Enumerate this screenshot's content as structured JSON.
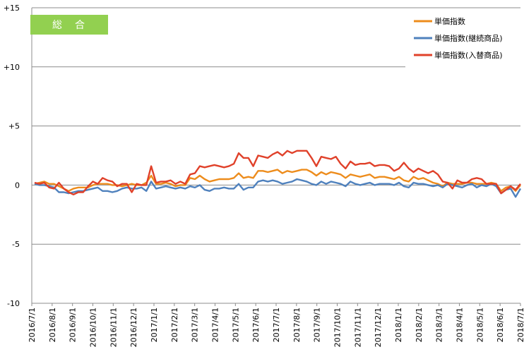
{
  "chart_data": {
    "type": "line",
    "badge": "総　合",
    "title": "",
    "xlabel": "",
    "ylabel": "",
    "ylim": [
      -10,
      15
    ],
    "yticks": [
      15,
      10,
      5,
      0,
      -5,
      -10
    ],
    "ytick_labels": [
      "+15",
      "+10",
      "+5",
      "0",
      "-5",
      "-10"
    ],
    "grid": "horizontal",
    "legend": "top-right",
    "x_labels": [
      "2016/7/1",
      "2016/8/1",
      "2016/9/1",
      "2016/10/1",
      "2016/11/1",
      "2016/12/1",
      "2017/1/1",
      "2017/2/1",
      "2017/3/1",
      "2017/4/1",
      "2017/5/1",
      "2017/6/1",
      "2017/7/1",
      "2017/8/1",
      "2017/9/1",
      "2017/10/1",
      "2017/11/1",
      "2017/12/1",
      "2018/1/1",
      "2018/2/1",
      "2018/3/1",
      "2018/4/1",
      "2018/5/1",
      "2018/6/1",
      "2018/7/1"
    ],
    "series": [
      {
        "name": "単価指数",
        "color": "#ed8c1c",
        "values": [
          0.1,
          0.2,
          0.3,
          0.1,
          0.1,
          -0.1,
          -0.3,
          -0.5,
          -0.3,
          -0.2,
          -0.2,
          -0.2,
          0.0,
          0.1,
          0.1,
          0.1,
          0.0,
          0.0,
          -0.1,
          0.0,
          0.1,
          0.0,
          0.0,
          0.2,
          0.8,
          0.1,
          0.1,
          0.2,
          0.1,
          -0.1,
          0.0,
          0.0,
          0.6,
          0.5,
          0.8,
          0.5,
          0.3,
          0.4,
          0.5,
          0.5,
          0.5,
          0.6,
          1.0,
          0.6,
          0.7,
          0.6,
          1.2,
          1.2,
          1.1,
          1.2,
          1.3,
          1.0,
          1.2,
          1.1,
          1.2,
          1.3,
          1.3,
          1.1,
          0.8,
          1.1,
          0.9,
          1.1,
          1.0,
          0.9,
          0.6,
          0.9,
          0.8,
          0.7,
          0.8,
          0.9,
          0.6,
          0.7,
          0.7,
          0.6,
          0.5,
          0.7,
          0.4,
          0.3,
          0.7,
          0.5,
          0.6,
          0.4,
          0.2,
          0.1,
          -0.1,
          0.2,
          0.1,
          0.1,
          0.1,
          0.2,
          0.2,
          0.1,
          0.1,
          0.1,
          0.2,
          0.1,
          -0.5,
          -0.2,
          -0.1,
          -0.5,
          0.0
        ]
      },
      {
        "name": "単価指数(継続商品)",
        "color": "#4f81bd",
        "values": [
          0.1,
          0.0,
          0.0,
          -0.1,
          -0.2,
          -0.6,
          -0.6,
          -0.7,
          -0.6,
          -0.5,
          -0.5,
          -0.4,
          -0.3,
          -0.2,
          -0.5,
          -0.5,
          -0.6,
          -0.5,
          -0.3,
          -0.2,
          -0.3,
          -0.3,
          -0.2,
          -0.5,
          0.3,
          -0.3,
          -0.2,
          -0.1,
          -0.2,
          -0.3,
          -0.2,
          -0.3,
          -0.1,
          -0.2,
          0.0,
          -0.4,
          -0.5,
          -0.3,
          -0.3,
          -0.2,
          -0.3,
          -0.3,
          0.1,
          -0.4,
          -0.2,
          -0.2,
          0.3,
          0.4,
          0.3,
          0.4,
          0.3,
          0.1,
          0.2,
          0.3,
          0.5,
          0.4,
          0.3,
          0.1,
          0.0,
          0.3,
          0.1,
          0.3,
          0.2,
          0.1,
          -0.1,
          0.3,
          0.1,
          0.0,
          0.1,
          0.2,
          0.0,
          0.1,
          0.1,
          0.1,
          0.0,
          0.2,
          -0.1,
          -0.2,
          0.2,
          0.1,
          0.1,
          0.0,
          -0.1,
          0.0,
          -0.2,
          0.1,
          0.0,
          -0.1,
          -0.2,
          0.0,
          0.1,
          -0.2,
          0.0,
          -0.1,
          0.1,
          -0.1,
          -0.7,
          -0.4,
          -0.3,
          -1.0,
          -0.3
        ]
      },
      {
        "name": "単価指数(入替商品)",
        "color": "#e0412a",
        "values": [
          0.2,
          0.1,
          0.2,
          -0.2,
          -0.3,
          0.2,
          -0.3,
          -0.6,
          -0.8,
          -0.6,
          -0.6,
          -0.1,
          0.3,
          0.1,
          0.6,
          0.4,
          0.3,
          -0.1,
          0.1,
          0.1,
          -0.6,
          0.1,
          0.0,
          0.0,
          1.6,
          0.2,
          0.3,
          0.3,
          0.4,
          0.1,
          0.3,
          0.1,
          0.9,
          1.0,
          1.6,
          1.5,
          1.6,
          1.7,
          1.6,
          1.5,
          1.6,
          1.8,
          2.7,
          2.3,
          2.3,
          1.6,
          2.5,
          2.4,
          2.3,
          2.6,
          2.8,
          2.5,
          2.9,
          2.7,
          2.9,
          2.9,
          2.9,
          2.3,
          1.6,
          2.4,
          2.3,
          2.2,
          2.4,
          1.8,
          1.4,
          2.0,
          1.7,
          1.8,
          1.8,
          1.9,
          1.6,
          1.7,
          1.7,
          1.6,
          1.2,
          1.4,
          1.9,
          1.4,
          1.1,
          1.4,
          1.2,
          1.0,
          1.2,
          0.9,
          0.3,
          0.2,
          -0.3,
          0.4,
          0.2,
          0.2,
          0.5,
          0.6,
          0.5,
          0.1,
          0.1,
          0.1,
          -0.7,
          -0.4,
          -0.1,
          -0.4,
          0.1
        ]
      }
    ]
  }
}
